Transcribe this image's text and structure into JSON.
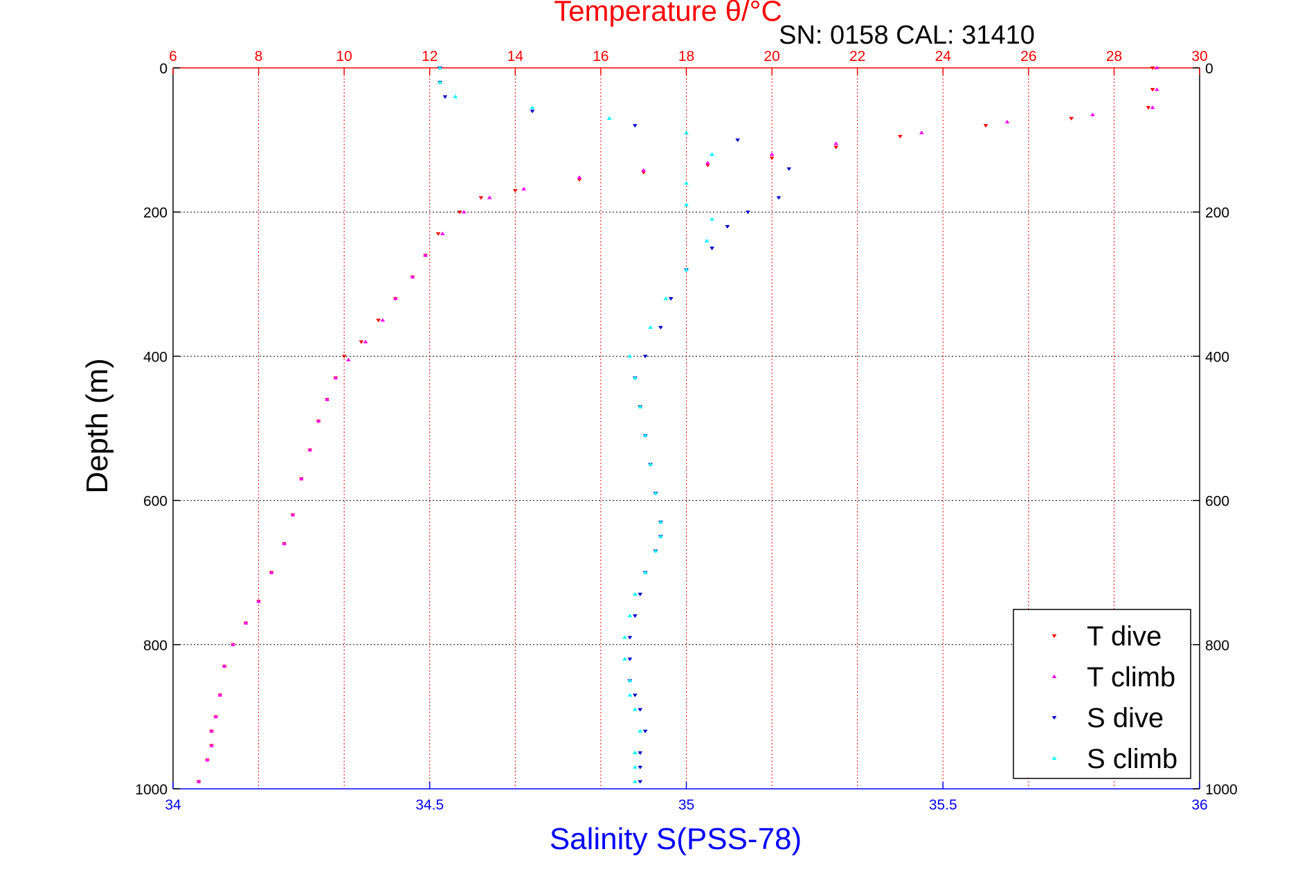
{
  "chart_data": {
    "type": "scatter",
    "title": "Temperature θ/°C",
    "subtitle": "SN: 0158  CAL: 31410",
    "ylabel": "Depth (m)",
    "xlabel_bottom": "Salinity S(PSS-78)",
    "ylim": [
      0,
      1000
    ],
    "y_inverted": true,
    "temperature_axis": {
      "range": [
        6,
        30
      ],
      "ticks": [
        6,
        8,
        10,
        12,
        14,
        16,
        18,
        20,
        22,
        24,
        26,
        28,
        30
      ],
      "position": "top",
      "color": "#ff0000"
    },
    "salinity_axis": {
      "range": [
        34,
        36
      ],
      "ticks": [
        34,
        34.5,
        35,
        35.5,
        36
      ],
      "position": "bottom",
      "color": "#0000ff"
    },
    "depth_ticks": [
      0,
      200,
      400,
      600,
      800,
      1000
    ],
    "grid": true,
    "legend": "bottom-right",
    "series": [
      {
        "name": "T dive",
        "axis": "temperature",
        "color": "#ff0000",
        "marker": "triangle-down",
        "x": [
          28.9,
          28.9,
          28.8,
          27.0,
          25.0,
          23.0,
          21.5,
          20.0,
          18.5,
          17.0,
          15.5,
          14.0,
          13.2,
          12.7,
          12.2,
          11.9,
          11.6,
          11.2,
          10.8,
          10.4,
          10.0,
          9.8,
          9.6,
          9.4,
          9.2,
          9.0,
          8.8,
          8.6,
          8.3,
          8.0,
          7.7,
          7.4,
          7.2,
          7.1,
          7.0,
          6.9,
          6.9,
          6.8,
          6.6
        ],
        "y": [
          0,
          30,
          55,
          70,
          80,
          95,
          110,
          125,
          135,
          145,
          155,
          170,
          180,
          200,
          230,
          260,
          290,
          320,
          350,
          380,
          400,
          430,
          460,
          490,
          530,
          570,
          620,
          660,
          700,
          740,
          770,
          800,
          830,
          870,
          900,
          920,
          940,
          960,
          990
        ]
      },
      {
        "name": "T climb",
        "axis": "temperature",
        "color": "#ff00ff",
        "marker": "triangle-up",
        "x": [
          29.0,
          29.0,
          28.9,
          27.5,
          25.5,
          23.5,
          21.5,
          20.0,
          18.5,
          17.0,
          15.5,
          14.2,
          13.4,
          12.8,
          12.3,
          11.9,
          11.6,
          11.2,
          10.9,
          10.5,
          10.1,
          9.8,
          9.6,
          9.4,
          9.2,
          9.0,
          8.8,
          8.6,
          8.3,
          8.0,
          7.7,
          7.4,
          7.2,
          7.1,
          7.0,
          6.9,
          6.9,
          6.8,
          6.6
        ],
        "y": [
          0,
          30,
          55,
          65,
          75,
          90,
          105,
          120,
          132,
          142,
          152,
          168,
          180,
          200,
          230,
          260,
          290,
          320,
          350,
          380,
          405,
          430,
          460,
          490,
          530,
          570,
          620,
          660,
          700,
          740,
          770,
          800,
          830,
          870,
          900,
          920,
          940,
          960,
          990
        ]
      },
      {
        "name": "S dive",
        "axis": "salinity",
        "color": "#0000cc",
        "marker": "triangle-down",
        "x": [
          34.52,
          34.52,
          34.53,
          34.7,
          34.9,
          35.1,
          35.2,
          35.18,
          35.12,
          35.08,
          35.05,
          35.0,
          34.97,
          34.95,
          34.92,
          34.9,
          34.91,
          34.92,
          34.93,
          34.94,
          34.95,
          34.95,
          34.94,
          34.92,
          34.91,
          34.9,
          34.89,
          34.89,
          34.89,
          34.9,
          34.91,
          34.92,
          34.91,
          34.91,
          34.91
        ],
        "y": [
          0,
          20,
          40,
          60,
          80,
          100,
          140,
          180,
          200,
          220,
          250,
          280,
          320,
          360,
          400,
          430,
          470,
          510,
          550,
          590,
          630,
          650,
          670,
          700,
          730,
          760,
          790,
          820,
          850,
          870,
          890,
          920,
          950,
          970,
          990
        ]
      },
      {
        "name": "S climb",
        "axis": "salinity",
        "color": "#00ffff",
        "marker": "triangle-up",
        "x": [
          34.52,
          34.52,
          34.55,
          34.7,
          34.85,
          35.0,
          35.05,
          35.0,
          35.0,
          35.05,
          35.04,
          35.0,
          34.96,
          34.93,
          34.89,
          34.9,
          34.91,
          34.92,
          34.93,
          34.94,
          34.95,
          34.95,
          34.94,
          34.92,
          34.9,
          34.89,
          34.88,
          34.88,
          34.89,
          34.89,
          34.9,
          34.91,
          34.9,
          34.9,
          34.9
        ],
        "y": [
          0,
          20,
          40,
          55,
          70,
          90,
          120,
          160,
          190,
          210,
          240,
          280,
          320,
          360,
          400,
          430,
          470,
          510,
          550,
          590,
          630,
          650,
          670,
          700,
          730,
          760,
          790,
          820,
          850,
          870,
          890,
          920,
          950,
          970,
          990
        ]
      }
    ]
  }
}
